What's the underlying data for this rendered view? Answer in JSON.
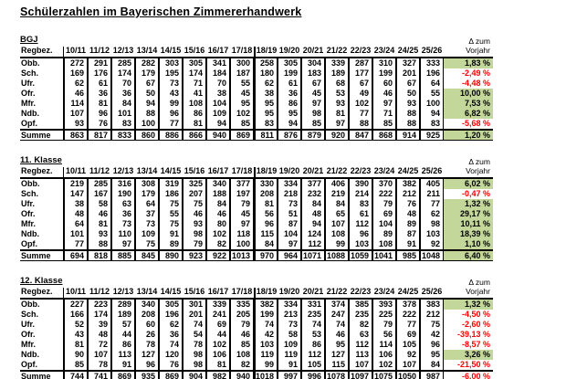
{
  "page_title": "Schülerzahlen im Bayerischen Zimmererhandwerk",
  "row_header_label": "Regbez.",
  "delta_header": [
    "Δ zum",
    "Vorjahr"
  ],
  "years": [
    "10/11",
    "11/12",
    "12/13",
    "13/14",
    "14/15",
    "15/16",
    "16/17",
    "17/18",
    "18/19",
    "19/20",
    "20/21",
    "21/22",
    "22/23",
    "23/24",
    "24/25",
    "25/26"
  ],
  "colors": {
    "positive_bg": "#c4d79b",
    "negative_text": "#ff0000",
    "grid": "#000000"
  },
  "tables": [
    {
      "title": "BGJ",
      "rows": [
        {
          "label": "Obb.",
          "values": [
            272,
            291,
            285,
            282,
            303,
            305,
            341,
            300,
            258,
            305,
            304,
            339,
            287,
            310,
            327,
            333
          ],
          "delta": "1,83 %"
        },
        {
          "label": "Sch.",
          "values": [
            169,
            176,
            174,
            179,
            195,
            174,
            184,
            187,
            180,
            199,
            183,
            189,
            177,
            199,
            201,
            196
          ],
          "delta": "-2,49 %"
        },
        {
          "label": "Ufr.",
          "values": [
            62,
            61,
            70,
            67,
            73,
            71,
            70,
            55,
            62,
            61,
            67,
            68,
            67,
            60,
            67,
            64
          ],
          "delta": "-4,48 %"
        },
        {
          "label": "Ofr.",
          "values": [
            46,
            36,
            36,
            50,
            43,
            41,
            38,
            45,
            38,
            36,
            45,
            53,
            49,
            46,
            50,
            55
          ],
          "delta": "10,00 %"
        },
        {
          "label": "Mfr.",
          "values": [
            114,
            81,
            84,
            94,
            99,
            108,
            104,
            95,
            95,
            86,
            97,
            93,
            102,
            97,
            93,
            100
          ],
          "delta": "7,53 %"
        },
        {
          "label": "Ndb.",
          "values": [
            107,
            96,
            101,
            88,
            96,
            86,
            109,
            102,
            95,
            95,
            98,
            81,
            77,
            71,
            88,
            94
          ],
          "delta": "6,82 %"
        },
        {
          "label": "Opf.",
          "values": [
            93,
            76,
            83,
            100,
            77,
            81,
            94,
            85,
            83,
            94,
            85,
            97,
            88,
            85,
            88,
            83
          ],
          "delta": "-5,68 %"
        }
      ],
      "summe": {
        "label": "Summe",
        "values": [
          863,
          817,
          833,
          860,
          886,
          866,
          940,
          869,
          811,
          876,
          879,
          920,
          847,
          868,
          914,
          925
        ],
        "delta": "1,20 %"
      }
    },
    {
      "title": "11. Klasse",
      "rows": [
        {
          "label": "Obb.",
          "values": [
            219,
            285,
            316,
            308,
            319,
            325,
            340,
            377,
            330,
            334,
            377,
            406,
            390,
            370,
            382,
            405
          ],
          "delta": "6,02 %"
        },
        {
          "label": "Sch.",
          "values": [
            147,
            167,
            190,
            179,
            186,
            207,
            188,
            197,
            208,
            218,
            232,
            219,
            214,
            222,
            212,
            211
          ],
          "delta": "-0,47 %"
        },
        {
          "label": "Ufr.",
          "values": [
            38,
            58,
            63,
            64,
            75,
            75,
            84,
            79,
            81,
            73,
            84,
            84,
            83,
            79,
            76,
            77
          ],
          "delta": "1,32 %"
        },
        {
          "label": "Ofr.",
          "values": [
            48,
            46,
            36,
            37,
            55,
            46,
            46,
            45,
            56,
            51,
            48,
            65,
            61,
            69,
            48,
            62
          ],
          "delta": "29,17 %"
        },
        {
          "label": "Mfr.",
          "values": [
            64,
            81,
            73,
            73,
            75,
            93,
            80,
            97,
            96,
            87,
            94,
            107,
            112,
            104,
            89,
            98
          ],
          "delta": "10,11 %"
        },
        {
          "label": "Ndb.",
          "values": [
            101,
            93,
            110,
            109,
            91,
            98,
            102,
            118,
            115,
            104,
            124,
            108,
            96,
            89,
            87,
            103
          ],
          "delta": "18,39 %"
        },
        {
          "label": "Opf.",
          "values": [
            77,
            88,
            97,
            75,
            89,
            79,
            82,
            100,
            84,
            97,
            112,
            99,
            103,
            108,
            91,
            92
          ],
          "delta": "1,10 %"
        }
      ],
      "summe": {
        "label": "Summe",
        "values": [
          694,
          818,
          885,
          845,
          890,
          923,
          922,
          1013,
          970,
          964,
          1071,
          1088,
          1059,
          1041,
          985,
          1048
        ],
        "delta": "6,40 %"
      }
    },
    {
      "title": "12. Klasse",
      "rows": [
        {
          "label": "Obb.",
          "values": [
            227,
            223,
            289,
            340,
            305,
            301,
            339,
            335,
            382,
            334,
            331,
            374,
            385,
            393,
            378,
            383
          ],
          "delta": "1,32 %"
        },
        {
          "label": "Sch.",
          "values": [
            166,
            174,
            189,
            208,
            196,
            201,
            241,
            205,
            199,
            213,
            235,
            247,
            235,
            225,
            222,
            212
          ],
          "delta": "-4,50 %"
        },
        {
          "label": "Ufr.",
          "values": [
            52,
            39,
            57,
            60,
            62,
            74,
            69,
            79,
            74,
            73,
            74,
            74,
            82,
            79,
            77,
            75
          ],
          "delta": "-2,60 %"
        },
        {
          "label": "Ofr.",
          "values": [
            43,
            48,
            44,
            26,
            36,
            54,
            44,
            46,
            42,
            58,
            53,
            46,
            63,
            56,
            69,
            42
          ],
          "delta": "-39,13 %"
        },
        {
          "label": "Mfr.",
          "values": [
            81,
            72,
            86,
            78,
            74,
            78,
            102,
            85,
            103,
            109,
            86,
            95,
            112,
            114,
            105,
            96
          ],
          "delta": "-8,57 %"
        },
        {
          "label": "Ndb.",
          "values": [
            90,
            107,
            113,
            127,
            120,
            98,
            106,
            108,
            119,
            119,
            112,
            127,
            113,
            106,
            92,
            95
          ],
          "delta": "3,26 %"
        },
        {
          "label": "Opf.",
          "values": [
            85,
            78,
            91,
            96,
            76,
            98,
            81,
            82,
            99,
            91,
            105,
            115,
            107,
            102,
            107,
            84
          ],
          "delta": "-21,50 %"
        }
      ],
      "summe": {
        "label": "Summe",
        "values": [
          744,
          741,
          869,
          935,
          869,
          904,
          982,
          940,
          1018,
          997,
          996,
          1078,
          1097,
          1075,
          1050,
          987
        ],
        "delta": "-6,00 %"
      }
    }
  ]
}
